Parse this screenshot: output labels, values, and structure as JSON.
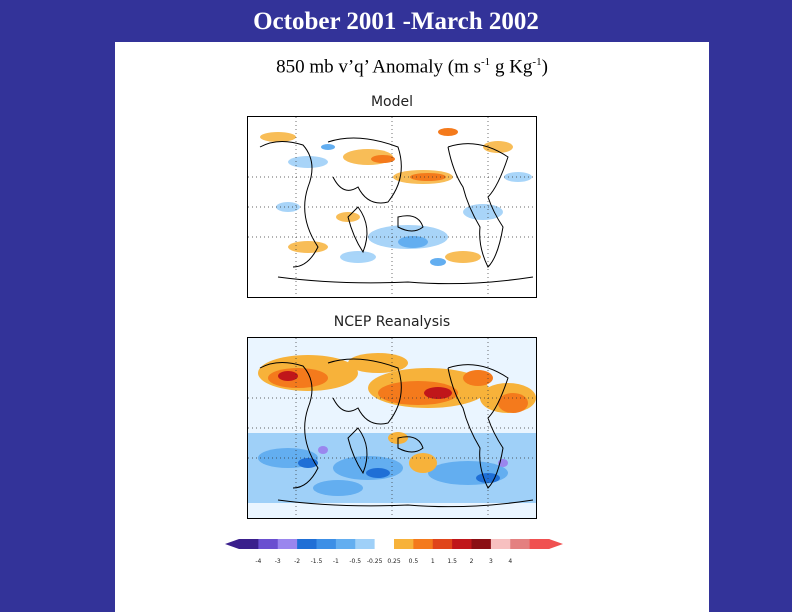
{
  "slide": {
    "title": "October 2001 -March 2002",
    "subtitle_main": "850 mb v’q’ Anomaly (m s",
    "subtitle_exp1": "-1",
    "subtitle_mid": " g Kg",
    "subtitle_exp2": "-1",
    "subtitle_end": ")"
  },
  "maps": [
    {
      "title": "Model"
    },
    {
      "title": "NCEP Reanalysis"
    }
  ],
  "colorbar": {
    "ticks": [
      "-4",
      "-3",
      "-2",
      "-1.5",
      "-1",
      "-0.5",
      "-0.25",
      "0.25",
      "0.5",
      "1",
      "1.5",
      "2",
      "3",
      "4"
    ],
    "colors": [
      "#3a1f8c",
      "#6a4fd0",
      "#9a86ee",
      "#1f6fd6",
      "#3c8fe6",
      "#63aef0",
      "#9fd0f8",
      "#ffffff",
      "#f7b23a",
      "#f47a1c",
      "#e0451a",
      "#c0161a",
      "#8b0f14",
      "#f7c0c0",
      "#e48080",
      "#f05050"
    ]
  }
}
